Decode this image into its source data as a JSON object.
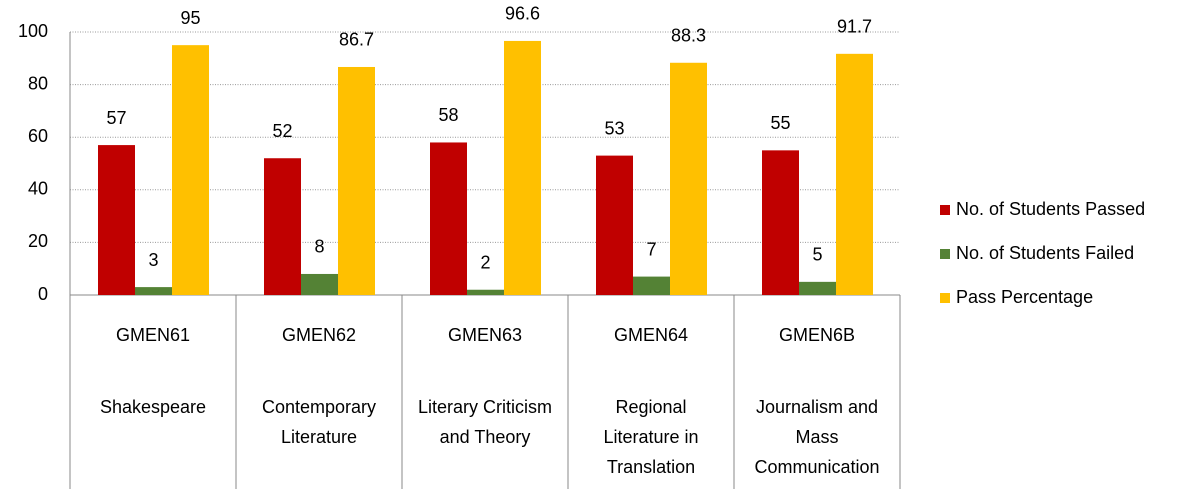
{
  "chart_data": {
    "type": "bar",
    "categories": [
      "GMEN61",
      "GMEN62",
      "GMEN63",
      "GMEN64",
      "GMEN6B"
    ],
    "category_names": [
      "Shakespeare",
      "Contemporary Literature",
      "Literary Criticism and Theory",
      "Regional Literature in Translation",
      "Journalism and Mass Communication"
    ],
    "series": [
      {
        "name": "No. of Students Passed",
        "color": "#c00000",
        "values": [
          57,
          52,
          58,
          53,
          55
        ]
      },
      {
        "name": "No. of Students Failed",
        "color": "#548235",
        "values": [
          3,
          8,
          2,
          7,
          5
        ]
      },
      {
        "name": "Pass Percentage",
        "color": "#ffc000",
        "values": [
          95,
          86.7,
          96.6,
          88.3,
          91.7
        ]
      }
    ],
    "ylim": [
      0,
      100
    ],
    "yticks": [
      0,
      20,
      40,
      60,
      80,
      100
    ],
    "grid": true,
    "legend": "right"
  }
}
